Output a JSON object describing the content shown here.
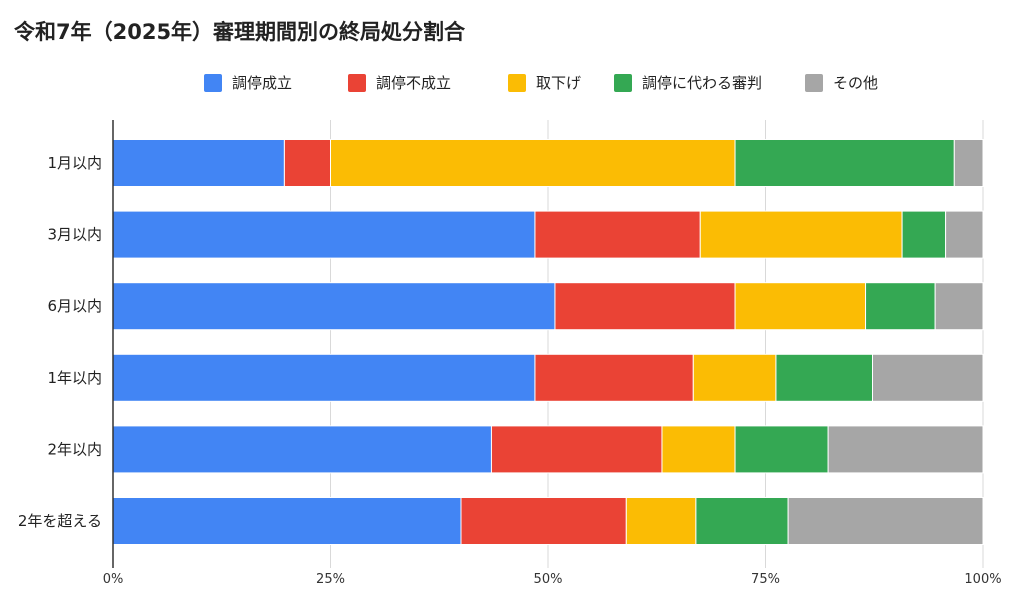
{
  "chart_data": {
    "type": "bar",
    "orientation": "horizontal",
    "stacked": true,
    "normalized": true,
    "title": "令和7年（2025年）審理期間別の終局処分割合",
    "categories": [
      "1月以内",
      "3月以内",
      "6月以内",
      "1年以内",
      "2年以内",
      "2年を超える"
    ],
    "series": [
      {
        "name": "調停成立",
        "color": "#4285F4",
        "values": [
          19.7,
          48.5,
          50.8,
          48.5,
          43.5,
          40.0
        ]
      },
      {
        "name": "調停不成立",
        "color": "#EA4335",
        "values": [
          5.3,
          19.0,
          20.7,
          18.2,
          19.6,
          19.0
        ]
      },
      {
        "name": "取下げ",
        "color": "#FBBC04",
        "values": [
          46.5,
          23.2,
          15.0,
          9.5,
          8.4,
          8.0
        ]
      },
      {
        "name": "調停に代わる審判",
        "color": "#34A853",
        "values": [
          25.2,
          5.0,
          8.0,
          11.1,
          10.7,
          10.6
        ]
      },
      {
        "name": "その他",
        "color": "#A6A6A6",
        "values": [
          3.3,
          4.3,
          5.5,
          12.7,
          17.8,
          22.4
        ]
      }
    ],
    "xlim": [
      0,
      100
    ],
    "x_ticks": [
      "0%",
      "25%",
      "50%",
      "75%",
      "100%"
    ],
    "grid": true,
    "legend": "top"
  }
}
